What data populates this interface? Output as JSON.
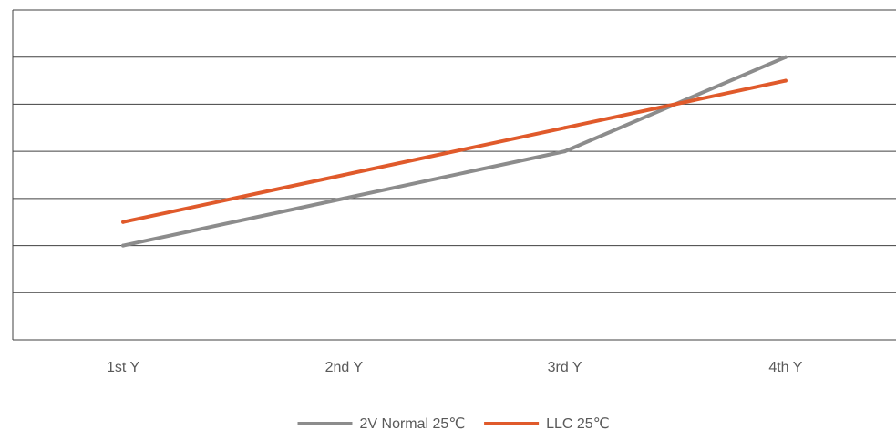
{
  "chart_data": {
    "type": "line",
    "title": "",
    "xlabel": "",
    "ylabel": "",
    "categories": [
      "1st Y",
      "2nd Y",
      "3rd Y",
      "4th Y"
    ],
    "ylim": [
      0,
      7
    ],
    "y_gridlines": 7,
    "grid": "horizontal",
    "legend_position": "bottom",
    "series": [
      {
        "name": "2V Normal 25℃",
        "color": "#8c8c8c",
        "values": [
          2,
          3,
          4,
          6
        ]
      },
      {
        "name": "LLC 25℃",
        "color": "#e05a2b",
        "values": [
          2.5,
          3.5,
          4.5,
          5.5
        ]
      }
    ],
    "colors": {
      "grid": "#404040",
      "axis": "#404040",
      "text": "#595959"
    }
  }
}
